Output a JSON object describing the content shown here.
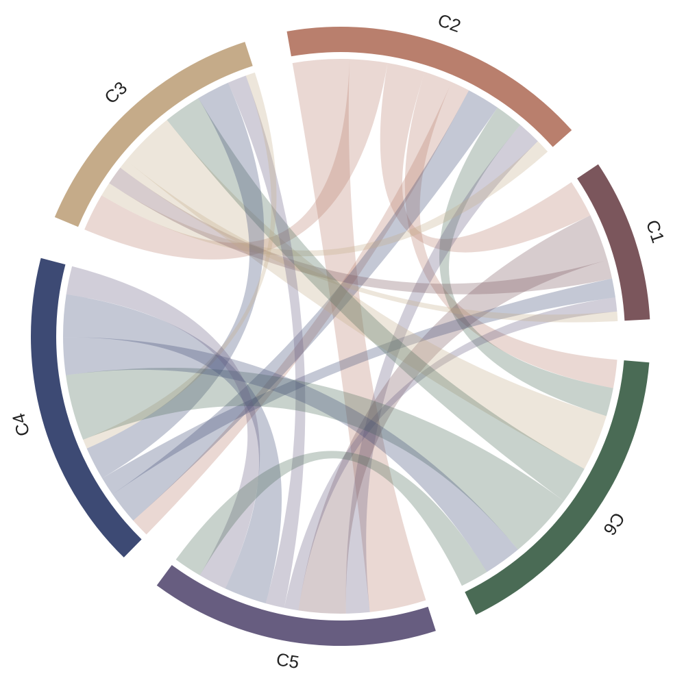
{
  "chart_data": {
    "type": "chord",
    "groups": [
      {
        "name": "C2",
        "color": "#b97f6d"
      },
      {
        "name": "C1",
        "color": "#7b565c"
      },
      {
        "name": "C6",
        "color": "#4a6b55"
      },
      {
        "name": "C5",
        "color": "#675d80"
      },
      {
        "name": "C4",
        "color": "#3d4a74"
      },
      {
        "name": "C3",
        "color": "#c5ab89"
      }
    ],
    "links": [
      {
        "source": "C2",
        "target": "C5",
        "value": 12
      },
      {
        "source": "C2",
        "target": "C3",
        "value": 8
      },
      {
        "source": "C2",
        "target": "C1",
        "value": 8
      },
      {
        "source": "C2",
        "target": "C6",
        "value": 6
      },
      {
        "source": "C2",
        "target": "C4",
        "value": 4
      },
      {
        "source": "C4",
        "target": "C2",
        "value": 7
      },
      {
        "source": "C6",
        "target": "C2",
        "value": 6
      },
      {
        "source": "C5",
        "target": "C2",
        "value": 5
      },
      {
        "source": "C3",
        "target": "C2",
        "value": 3
      },
      {
        "source": "C1",
        "target": "C5",
        "value": 10
      },
      {
        "source": "C1",
        "target": "C3",
        "value": 4
      },
      {
        "source": "C4",
        "target": "C1",
        "value": 4
      },
      {
        "source": "C5",
        "target": "C1",
        "value": 3
      },
      {
        "source": "C3",
        "target": "C1",
        "value": 2
      },
      {
        "source": "C3",
        "target": "C6",
        "value": 12
      },
      {
        "source": "C6",
        "target": "C3",
        "value": 8
      },
      {
        "source": "C4",
        "target": "C3",
        "value": 7
      },
      {
        "source": "C5",
        "target": "C3",
        "value": 4
      },
      {
        "source": "C3",
        "target": "C4",
        "value": 2
      },
      {
        "source": "C6",
        "target": "C4",
        "value": 14
      },
      {
        "source": "C4",
        "target": "C6",
        "value": 8
      },
      {
        "source": "C4",
        "target": "C5",
        "value": 9
      },
      {
        "source": "C5",
        "target": "C4",
        "value": 6
      },
      {
        "source": "C6",
        "target": "C5",
        "value": 6
      }
    ]
  }
}
